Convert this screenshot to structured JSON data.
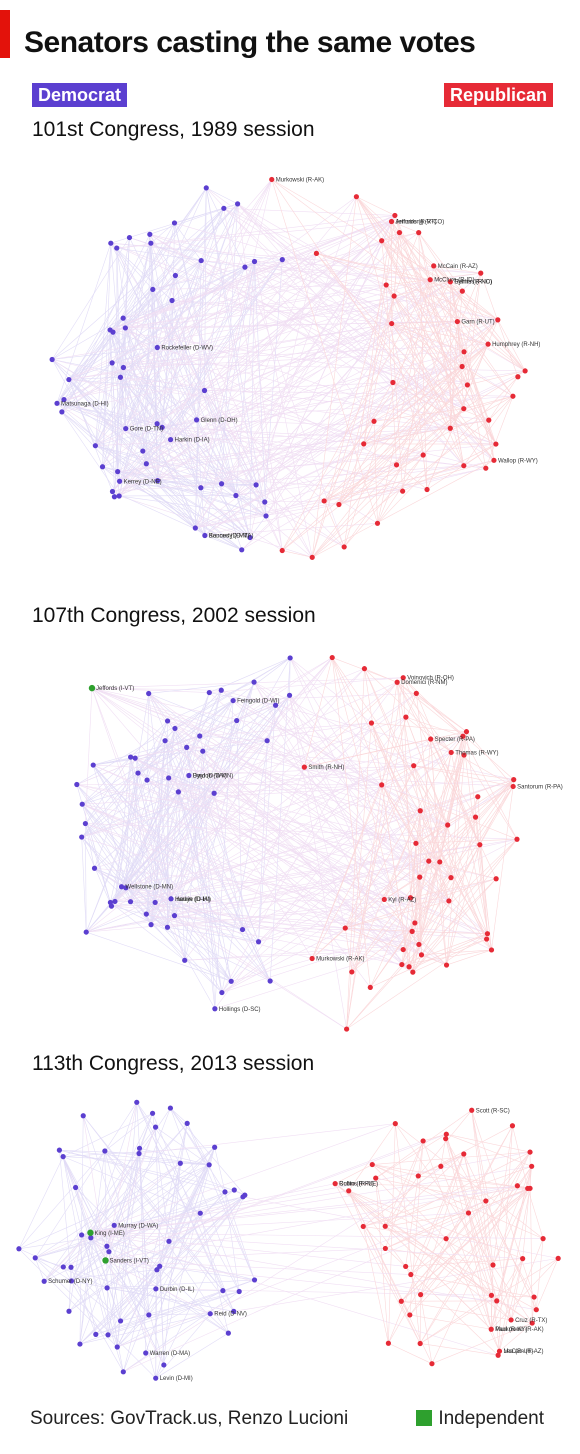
{
  "title": "Senators casting the same votes",
  "legend": {
    "democrat": "Democrat",
    "republican": "Republican",
    "independent": "Independent"
  },
  "colors": {
    "democrat": "#5b3fd0",
    "republican": "#e62a36",
    "independent": "#2ea02e",
    "accent": "#e3120b"
  },
  "panels": [
    {
      "title": "101st Congress, 1989 session",
      "node_counts": {
        "democrat": 55,
        "republican": 45,
        "independent": 0
      },
      "partisan_gap": false,
      "labels": [
        "Gore (D-TN)",
        "Jeffords (R-VT)",
        "Kennedy (D-MA)",
        "McCain (R-AZ)",
        "Murkowski (R-AK)",
        "McClure (R-ID)",
        "Wallop (R-WY)",
        "Helms (R-NC)",
        "Rockefeller (D-WV)",
        "Matsunaga (D-HI)",
        "Armstrong (R-CO)",
        "Humphrey (R-NH)",
        "Harkin (D-IA)",
        "Baucus (D-MT)",
        "Glenn (D-OH)",
        "Kerrey (D-NE)",
        "Symms (R-ID)",
        "Garn (R-UT)"
      ]
    },
    {
      "title": "107th Congress, 2002 session",
      "node_counts": {
        "democrat": 50,
        "republican": 49,
        "independent": 1
      },
      "partisan_gap": false,
      "labels": [
        "Harkin (D-IA)",
        "Specter (R-PA)",
        "Jeffords (I-VT)",
        "Voinovich (R-OH)",
        "Byrd (D-WV)",
        "Thomas (R-WY)",
        "Hollings (D-SC)",
        "Kyl (R-AZ)",
        "Wellstone (D-MN)",
        "Smith (R-NH)",
        "Inouye (D-HI)",
        "Murkowski (R-AK)",
        "Domenici (R-NM)",
        "Santorum (R-PA)",
        "Dayton (D-MN)",
        "Feingold (D-WI)"
      ]
    },
    {
      "title": "113th Congress, 2013 session",
      "node_counts": {
        "democrat": 53,
        "republican": 45,
        "independent": 2
      },
      "partisan_gap": true,
      "labels": [
        "Sanders (I-VT)",
        "King (I-ME)",
        "Cruz (R-TX)",
        "Rubio (R-FL)",
        "Paul (R-KY)",
        "Lee (R-UT)",
        "Scott (R-SC)",
        "Murray (D-WA)",
        "Reid (D-NV)",
        "Schumer (D-NY)",
        "Durbin (D-IL)",
        "Warren (D-MA)",
        "Collins (R-ME)",
        "Murkowski (R-AK)",
        "McCain (R-AZ)",
        "Levin (D-MI)"
      ]
    }
  ],
  "footer": {
    "sources": "Sources: GovTrack.us, Renzo Lucioni"
  }
}
